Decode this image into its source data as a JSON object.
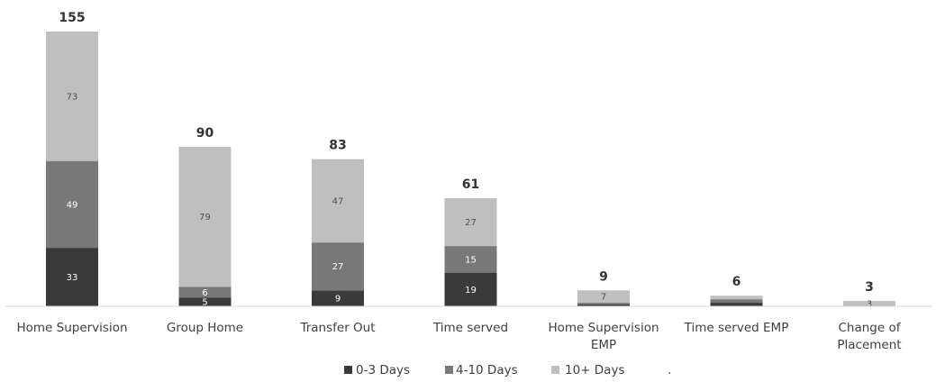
{
  "chart_data": {
    "type": "bar",
    "stacked": true,
    "categories": [
      [
        "Home Supervision"
      ],
      [
        "Group Home"
      ],
      [
        "Transfer Out"
      ],
      [
        "Time served"
      ],
      [
        "Home Supervision",
        "EMP"
      ],
      [
        "Time served EMP"
      ],
      [
        "Change of",
        "Placement"
      ]
    ],
    "series": [
      {
        "name": "0-3 Days",
        "values": [
          33,
          5,
          9,
          19,
          1,
          2,
          0
        ],
        "color": "#3a3a3a",
        "labels": [
          "33",
          "5",
          "9",
          "19",
          "",
          "",
          ""
        ]
      },
      {
        "name": "4-10 Days",
        "values": [
          49,
          6,
          27,
          15,
          1,
          2,
          0
        ],
        "color": "#787878",
        "labels": [
          "49",
          "6",
          "27",
          "15",
          "",
          "",
          ""
        ]
      },
      {
        "name": "10+ Days",
        "values": [
          73,
          79,
          47,
          27,
          7,
          2,
          3
        ],
        "color": "#bfbfbf",
        "labels": [
          "73",
          "79",
          "47",
          "27",
          "7",
          "",
          "3"
        ]
      }
    ],
    "totals": [
      "155",
      "90",
      "83",
      "61",
      "9",
      "6",
      "3"
    ],
    "ylim": [
      0,
      160
    ],
    "legend": "bottom",
    "grid": false
  },
  "legend_trailing_mark": "."
}
